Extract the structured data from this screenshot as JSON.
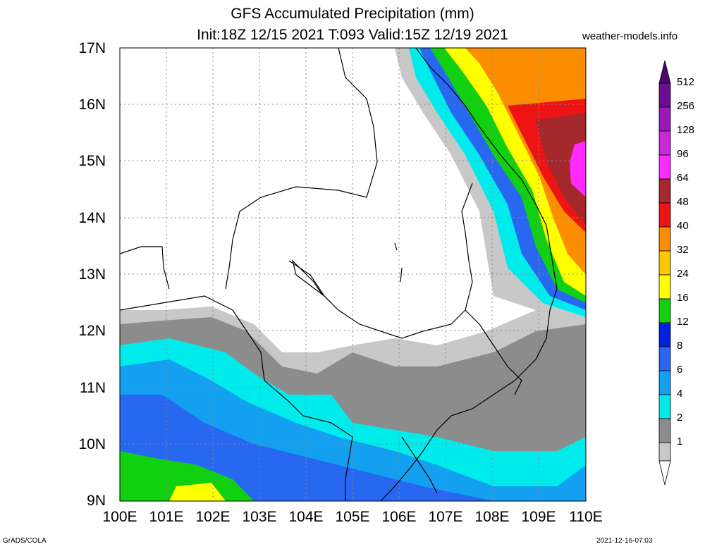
{
  "title": {
    "line1": "GFS Accumulated Precipitation (mm)",
    "line2": "Init:18Z 12/15 2021 T:093 Valid:15Z 12/19 2021"
  },
  "site": "weather-models.info",
  "lat_labels": [
    "17N",
    "16N",
    "15N",
    "14N",
    "13N",
    "12N",
    "11N",
    "10N",
    "9N"
  ],
  "lon_labels": [
    "100E",
    "101E",
    "102E",
    "103E",
    "104E",
    "105E",
    "106E",
    "107E",
    "108E",
    "109E",
    "110E"
  ],
  "legend": {
    "levels": [
      "512",
      "256",
      "128",
      "96",
      "64",
      "48",
      "40",
      "32",
      "24",
      "16",
      "12",
      "8",
      "6",
      "4",
      "2",
      "1"
    ],
    "colors": [
      "#6a0d93",
      "#9a18b8",
      "#cc28d8",
      "#ff2aff",
      "#a4282c",
      "#ee1414",
      "#fa8e00",
      "#ffc800",
      "#ffff00",
      "#10d010",
      "#0020e0",
      "#2868f0",
      "#14a0f0",
      "#00ecec",
      "#8c8c8c",
      "#c8c8c8"
    ]
  },
  "footer": {
    "left": "GrADS/COLA",
    "right": "2021-12-16-07:03"
  }
}
